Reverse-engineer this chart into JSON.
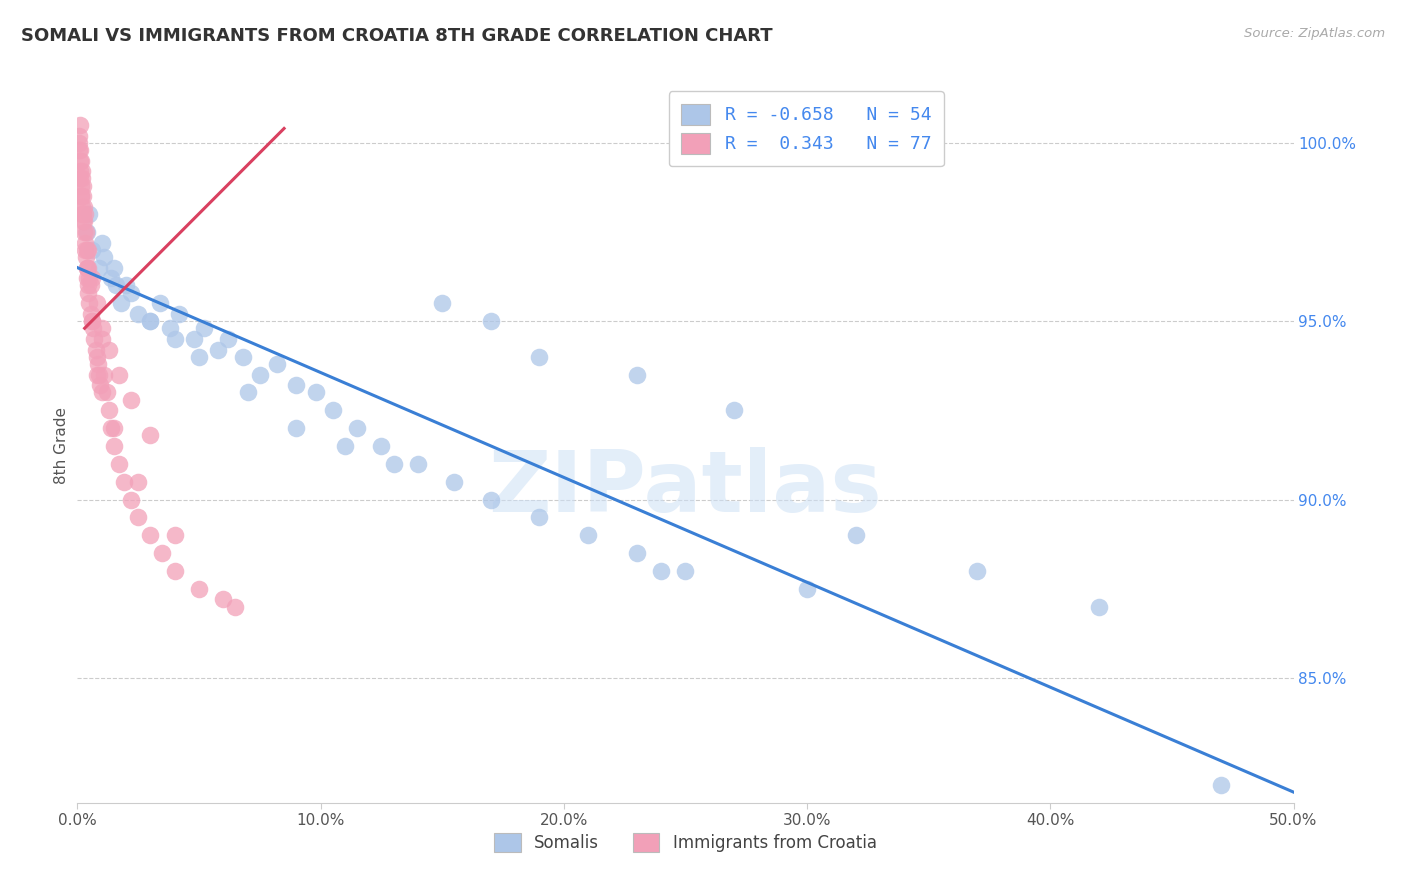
{
  "title": "SOMALI VS IMMIGRANTS FROM CROATIA 8TH GRADE CORRELATION CHART",
  "source": "Source: ZipAtlas.com",
  "ylabel": "8th Grade",
  "xlim": [
    0.0,
    50.0
  ],
  "ylim": [
    81.5,
    101.5
  ],
  "x_ticks": [
    0,
    10,
    20,
    30,
    40,
    50
  ],
  "x_tick_labels": [
    "0.0%",
    "10.0%",
    "20.0%",
    "30.0%",
    "40.0%",
    "50.0%"
  ],
  "y_ticks": [
    85,
    90,
    95,
    100
  ],
  "y_tick_labels": [
    "85.0%",
    "90.0%",
    "95.0%",
    "100.0%"
  ],
  "blue_color": "#adc6e8",
  "pink_color": "#f2a0b8",
  "trendline_blue_color": "#3a7fd5",
  "trendline_pink_color": "#d94060",
  "legend_blue_label": "R = -0.658   N = 54",
  "legend_pink_label": "R =  0.343   N = 77",
  "legend_blue_text": "Somalis",
  "legend_pink_text": "Immigrants from Croatia",
  "watermark": "ZIPatlas",
  "grid_color": "#cccccc",
  "title_color": "#333333",
  "source_color": "#aaaaaa",
  "y_tick_color": "#4488ee",
  "x_tick_color": "#555555",
  "blue_trendline_x0": 0.0,
  "blue_trendline_y0": 96.5,
  "blue_trendline_x1": 50.0,
  "blue_trendline_y1": 81.8,
  "pink_trendline_x0": 0.3,
  "pink_trendline_y0": 94.8,
  "pink_trendline_x1": 8.5,
  "pink_trendline_y1": 100.4,
  "blue_x": [
    0.4,
    0.6,
    0.9,
    1.1,
    1.4,
    1.6,
    1.8,
    2.2,
    2.5,
    3.0,
    3.4,
    3.8,
    4.2,
    4.8,
    5.2,
    5.8,
    6.2,
    6.8,
    7.5,
    8.2,
    9.0,
    9.8,
    10.5,
    11.5,
    12.5,
    14.0,
    15.5,
    17.0,
    19.0,
    21.0,
    23.0,
    25.0,
    0.5,
    1.0,
    1.5,
    2.0,
    3.0,
    4.0,
    5.0,
    7.0,
    9.0,
    11.0,
    13.0,
    15.0,
    17.0,
    19.0,
    23.0,
    27.0,
    32.0,
    37.0,
    42.0,
    47.0,
    24.0,
    30.0
  ],
  "blue_y": [
    97.5,
    97.0,
    96.5,
    96.8,
    96.2,
    96.0,
    95.5,
    95.8,
    95.2,
    95.0,
    95.5,
    94.8,
    95.2,
    94.5,
    94.8,
    94.2,
    94.5,
    94.0,
    93.5,
    93.8,
    93.2,
    93.0,
    92.5,
    92.0,
    91.5,
    91.0,
    90.5,
    90.0,
    89.5,
    89.0,
    88.5,
    88.0,
    98.0,
    97.2,
    96.5,
    96.0,
    95.0,
    94.5,
    94.0,
    93.0,
    92.0,
    91.5,
    91.0,
    95.5,
    95.0,
    94.0,
    93.5,
    92.5,
    89.0,
    88.0,
    87.0,
    82.0,
    88.0,
    87.5
  ],
  "pink_x": [
    0.05,
    0.06,
    0.08,
    0.09,
    0.1,
    0.1,
    0.12,
    0.13,
    0.15,
    0.15,
    0.17,
    0.18,
    0.2,
    0.2,
    0.22,
    0.23,
    0.25,
    0.25,
    0.27,
    0.28,
    0.3,
    0.3,
    0.32,
    0.35,
    0.35,
    0.38,
    0.4,
    0.4,
    0.42,
    0.45,
    0.45,
    0.5,
    0.5,
    0.55,
    0.58,
    0.6,
    0.65,
    0.7,
    0.75,
    0.8,
    0.85,
    0.9,
    0.95,
    1.0,
    1.0,
    1.1,
    1.2,
    1.3,
    1.4,
    1.5,
    1.7,
    1.9,
    2.2,
    2.5,
    3.0,
    3.5,
    4.0,
    5.0,
    6.5,
    0.15,
    0.28,
    0.45,
    0.6,
    0.8,
    1.0,
    1.3,
    1.7,
    2.2,
    3.0,
    0.2,
    0.4,
    0.6,
    0.8,
    1.5,
    2.5,
    4.0,
    6.0
  ],
  "pink_y": [
    99.8,
    100.2,
    100.0,
    99.5,
    99.2,
    100.5,
    99.0,
    99.8,
    98.8,
    99.5,
    98.5,
    99.2,
    98.2,
    99.0,
    98.0,
    98.8,
    97.8,
    98.5,
    97.5,
    98.2,
    97.2,
    98.0,
    97.0,
    96.8,
    97.5,
    96.5,
    96.2,
    97.0,
    96.0,
    95.8,
    96.5,
    95.5,
    96.2,
    95.2,
    96.0,
    95.0,
    94.8,
    94.5,
    94.2,
    94.0,
    93.8,
    93.5,
    93.2,
    93.0,
    94.5,
    93.5,
    93.0,
    92.5,
    92.0,
    91.5,
    91.0,
    90.5,
    90.0,
    89.5,
    89.0,
    88.5,
    88.0,
    87.5,
    87.0,
    98.5,
    97.8,
    97.0,
    96.2,
    95.5,
    94.8,
    94.2,
    93.5,
    92.8,
    91.8,
    98.0,
    96.5,
    95.0,
    93.5,
    92.0,
    90.5,
    89.0,
    87.2
  ]
}
